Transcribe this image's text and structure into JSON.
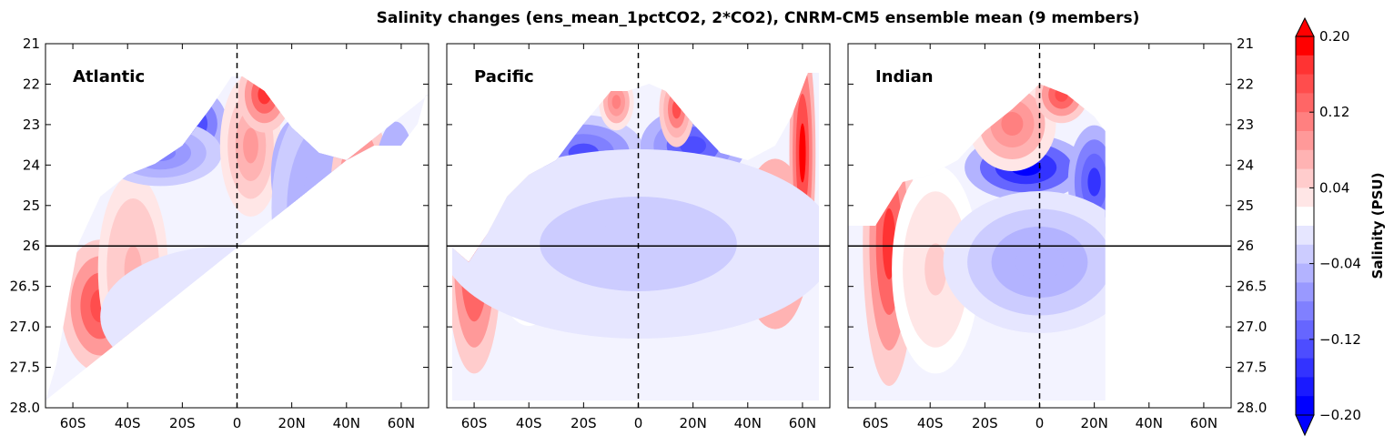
{
  "chart_data": {
    "type": "heatmap",
    "title": "Salinity changes (ens_mean_1pctCO2, 2*CO2), CNRM-CM5 ensemble mean (9 members)",
    "xlabel": "",
    "ylabel": "",
    "x_tick_labels": [
      "60S",
      "40S",
      "20S",
      "0",
      "20N",
      "40N",
      "60N"
    ],
    "x_tick_values": [
      -60,
      -40,
      -20,
      0,
      20,
      40,
      60
    ],
    "xlim": [
      -70,
      70
    ],
    "y_tick_labels": [
      "21",
      "22",
      "23",
      "24",
      "25",
      "26",
      "26.5",
      "27.0",
      "27.5",
      "28.0"
    ],
    "y_tick_values": [
      21,
      22,
      23,
      24,
      25,
      26,
      26.5,
      27.0,
      27.5,
      28.0
    ],
    "ylim": [
      28.0,
      21
    ],
    "reference_line_density": 26,
    "reference_line_lat": 0,
    "colorbar": {
      "label": "Salinity (PSU)",
      "tick_labels": [
        "0.20",
        "0.12",
        "0.04",
        "−0.04",
        "−0.12",
        "−0.20"
      ],
      "min": -0.2,
      "max": 0.2,
      "levels": 20,
      "colors": [
        "#0000ff",
        "#1a1aff",
        "#3333ff",
        "#4d4dff",
        "#6666ff",
        "#8080ff",
        "#9999ff",
        "#b3b3ff",
        "#ccccff",
        "#e6e6ff",
        "#ffffff",
        "#ffe6e6",
        "#ffcccc",
        "#ffb3b3",
        "#ff9999",
        "#ff8080",
        "#ff6666",
        "#ff4d4d",
        "#ff3333",
        "#ff0000"
      ]
    },
    "panels": [
      {
        "name": "Atlantic",
        "bottom_lat": {
          "south": -70,
          "north": 70
        },
        "features": [
          {
            "lat": -50,
            "depth": 0.72,
            "value": 0.17,
            "w": 9,
            "h": 0.14
          },
          {
            "lat": -38,
            "depth": 0.62,
            "value": 0.08,
            "w": 8,
            "h": 0.2
          },
          {
            "lat": -18,
            "depth": 0.22,
            "value": -0.18,
            "w": 9,
            "h": 0.08
          },
          {
            "lat": -28,
            "depth": 0.3,
            "value": -0.1,
            "w": 14,
            "h": 0.07
          },
          {
            "lat": 5,
            "depth": 0.28,
            "value": 0.09,
            "w": 7,
            "h": 0.15
          },
          {
            "lat": 10,
            "depth": 0.14,
            "value": 0.18,
            "w": 6,
            "h": 0.08
          },
          {
            "lat": 22,
            "depth": 0.36,
            "value": -0.17,
            "w": 6,
            "h": 0.12
          },
          {
            "lat": 35,
            "depth": 0.45,
            "value": -0.08,
            "w": 14,
            "h": 0.25
          },
          {
            "lat": 38,
            "depth": 0.65,
            "value": -0.16,
            "w": 4,
            "h": 0.1
          },
          {
            "lat": 45,
            "depth": 0.45,
            "value": 0.19,
            "w": 7,
            "h": 0.22
          },
          {
            "lat": 52,
            "depth": 0.72,
            "value": 0.15,
            "w": 4,
            "h": 0.18
          },
          {
            "lat": 58,
            "depth": 0.5,
            "value": -0.2,
            "w": 6,
            "h": 0.22
          },
          {
            "lat": 68,
            "depth": 0.35,
            "value": 0.18,
            "w": 3,
            "h": 0.1
          },
          {
            "lat": -2,
            "depth": 0.75,
            "value": -0.02,
            "w": 30,
            "h": 0.15
          }
        ]
      },
      {
        "name": "Pacific",
        "bottom_lat": {
          "south": -70,
          "north": 70
        },
        "features": [
          {
            "lat": -60,
            "depth": 0.62,
            "value": 0.18,
            "w": 6,
            "h": 0.22
          },
          {
            "lat": -40,
            "depth": 0.45,
            "value": 0.05,
            "w": 10,
            "h": 0.25
          },
          {
            "lat": -20,
            "depth": 0.3,
            "value": -0.13,
            "w": 14,
            "h": 0.08
          },
          {
            "lat": 20,
            "depth": 0.28,
            "value": -0.14,
            "w": 12,
            "h": 0.08
          },
          {
            "lat": -8,
            "depth": 0.16,
            "value": 0.12,
            "w": 4,
            "h": 0.06
          },
          {
            "lat": 14,
            "depth": 0.18,
            "value": 0.15,
            "w": 4,
            "h": 0.08
          },
          {
            "lat": 50,
            "depth": 0.55,
            "value": 0.2,
            "w": 8,
            "h": 0.18
          },
          {
            "lat": 60,
            "depth": 0.3,
            "value": 0.2,
            "w": 3,
            "h": 0.25
          },
          {
            "lat": 0,
            "depth": 0.55,
            "value": -0.03,
            "w": 45,
            "h": 0.2
          }
        ]
      },
      {
        "name": "Indian",
        "bottom_lat": {
          "south": -70,
          "north": 25
        },
        "features": [
          {
            "lat": -55,
            "depth": 0.55,
            "value": 0.18,
            "w": 6,
            "h": 0.3
          },
          {
            "lat": -38,
            "depth": 0.62,
            "value": 0.05,
            "w": 10,
            "h": 0.22
          },
          {
            "lat": -5,
            "depth": 0.34,
            "value": -0.2,
            "w": 14,
            "h": 0.07
          },
          {
            "lat": 20,
            "depth": 0.38,
            "value": -0.16,
            "w": 6,
            "h": 0.12
          },
          {
            "lat": -10,
            "depth": 0.22,
            "value": 0.12,
            "w": 10,
            "h": 0.1
          },
          {
            "lat": 8,
            "depth": 0.14,
            "value": 0.17,
            "w": 6,
            "h": 0.06
          },
          {
            "lat": 0,
            "depth": 0.6,
            "value": -0.06,
            "w": 22,
            "h": 0.15
          }
        ]
      }
    ]
  }
}
